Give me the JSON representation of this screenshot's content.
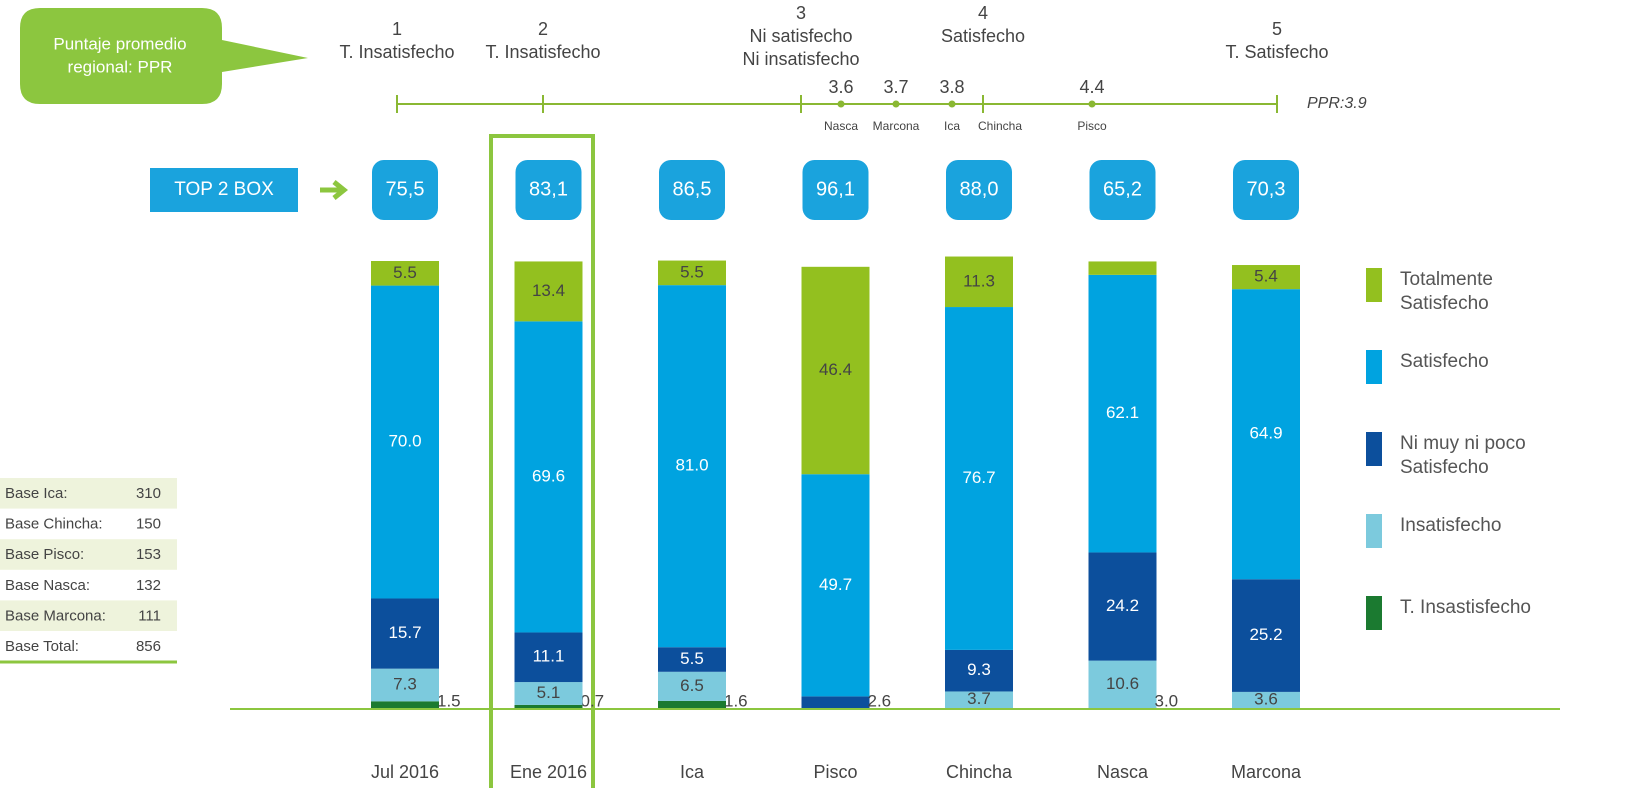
{
  "chart_data": {
    "type": "stacked_bar",
    "categories": [
      "Jul 2016",
      "Ene 2016",
      "Ica",
      "Pisco",
      "Chincha",
      "Nasca",
      "Marcona"
    ],
    "ylim": [
      0,
      100
    ],
    "series": [
      {
        "name": "Totalmente Satisfecho",
        "color": "#93c01f",
        "label_color": "#444444",
        "values": [
          5.5,
          13.4,
          5.5,
          46.4,
          11.3,
          3.0,
          5.4
        ],
        "value_labels": [
          "5.5",
          "13.4",
          "5.5",
          "46.4",
          "11.3",
          "3.0",
          "5.4"
        ]
      },
      {
        "name": "Satisfecho",
        "color": "#00a3e0",
        "label_color": "#ffffff",
        "values": [
          70.0,
          69.6,
          81.0,
          49.7,
          76.7,
          62.1,
          64.9
        ],
        "value_labels": [
          "70.0",
          "69.6",
          "81.0",
          "49.7",
          "76.7",
          "62.1",
          "64.9"
        ]
      },
      {
        "name": "Ni muy ni poco Satisfecho",
        "color": "#0c4f9c",
        "label_color": "#ffffff",
        "values": [
          15.7,
          11.1,
          5.5,
          2.6,
          9.3,
          24.2,
          25.2
        ]
      },
      {
        "name": "Insatisfecho",
        "color": "#7ccadd",
        "label_color": "#444444",
        "values": [
          7.3,
          5.1,
          6.5,
          null,
          3.7,
          10.6,
          3.6
        ]
      },
      {
        "name": "T. Insastisfecho",
        "color": "#1b7a30",
        "label_color": "#444444",
        "values": [
          1.5,
          0.7,
          1.6,
          null,
          null,
          null,
          null
        ]
      }
    ],
    "top2box": {
      "label": "TOP 2 BOX",
      "values": [
        75.5,
        83.1,
        86.5,
        96.1,
        88.0,
        65.2,
        70.3
      ],
      "value_labels": [
        "75,5",
        "83,1",
        "86,5",
        "96,1",
        "88,0",
        "65,2",
        "70,3"
      ]
    },
    "callout": [
      "Puntaje promedio",
      "regional: PPR"
    ],
    "scale": {
      "levels": [
        {
          "value": 1,
          "name": [
            "T. Insatisfecho"
          ]
        },
        {
          "value": 2,
          "name": [
            "T. Insatisfecho"
          ]
        },
        {
          "value": 3,
          "name": [
            "Ni satisfecho",
            "Ni insatisfecho"
          ]
        },
        {
          "value": 4,
          "name": [
            "Satisfecho"
          ]
        },
        {
          "value": 5,
          "name": [
            "T. Satisfecho"
          ]
        }
      ],
      "points": [
        {
          "name": "Nasca",
          "value": 3.6
        },
        {
          "name": "Marcona",
          "value": 3.7
        },
        {
          "name": "Ica",
          "value": 3.8
        },
        {
          "name": "Chincha",
          "value": null
        },
        {
          "name": "Pisco",
          "value": 4.4
        }
      ],
      "ppr": "PPR:3.9"
    },
    "base_table": [
      [
        "Base Ica:",
        310
      ],
      [
        "Base Chincha:",
        150
      ],
      [
        "Base Pisco:",
        153
      ],
      [
        "Base Nasca:",
        132
      ],
      [
        "Base Marcona:",
        111
      ],
      [
        "Base Total:",
        856
      ]
    ]
  }
}
